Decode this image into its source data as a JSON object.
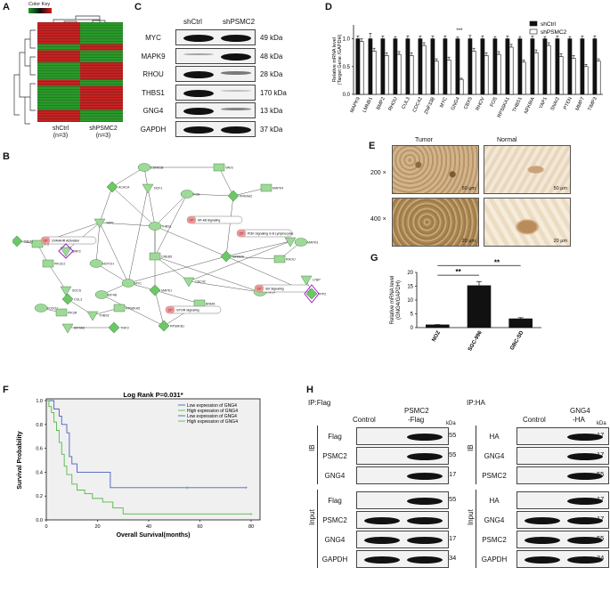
{
  "panels": {
    "A": "A",
    "B": "B",
    "C": "C",
    "D": "D",
    "E": "E",
    "F": "F",
    "G": "G",
    "H": "H"
  },
  "panelA": {
    "color_key": "Color Key",
    "groups": [
      "shCtrl\n(n=3)",
      "shPSMC2\n(n=3)"
    ],
    "group1": "shCtrl",
    "group1_n": "(n=3)",
    "group2": "shPSMC2",
    "group2_n": "(n=3)"
  },
  "panelB": {
    "nodes": [
      "CSNK1B",
      "VAV3",
      "ACACA",
      "NCF1",
      "FOS",
      "MAPK4",
      "PRKAA2",
      "YAP1",
      "THBS1",
      "CREB5",
      "NFKBIA",
      "CDC42",
      "MYC",
      "RHOU",
      "MAPK1",
      "SMAD",
      "EIF4B",
      "PIK3C2",
      "RPS6KB1",
      "SOCS",
      "FOXO1",
      "IRS",
      "CUL3",
      "THBS2",
      "GNG4",
      "PIK3R",
      "PPP2",
      "BMP2",
      "NOTCH",
      "RPS6KA5",
      "TNFO",
      "EIF4A3",
      "MAPK3",
      "BNMA",
      "TMEM",
      "LTBP"
    ],
    "pathways": [
      "UVA/AHR Activation",
      "NF-kB Signaling",
      "PI3K Signaling in B Lymphocytes",
      "Sirt Signaling",
      "mTOR Signaling"
    ],
    "pathway_tag": "CP"
  },
  "panelC": {
    "headers": [
      "shCtrl",
      "shPSMC2"
    ],
    "rows": [
      {
        "name": "MYC",
        "kda": "49 kDa",
        "ctrl": 1.0,
        "sh": 1.0
      },
      {
        "name": "MAPK9",
        "kda": "48 kDa",
        "ctrl": 0.25,
        "sh": 1.0
      },
      {
        "name": "RHOU",
        "kda": "28 kDa",
        "ctrl": 1.0,
        "sh": 0.45
      },
      {
        "name": "THBS1",
        "kda": "170 kDa",
        "ctrl": 1.0,
        "sh": 0.1
      },
      {
        "name": "GNG4",
        "kda": "13 kDa",
        "ctrl": 1.0,
        "sh": 0.4
      },
      {
        "name": "GAPDH",
        "kda": "37 kDa",
        "ctrl": 1.0,
        "sh": 1.0
      }
    ]
  },
  "panelE": {
    "col1": "Tumor",
    "col2": "Normal",
    "row1": "200 ×",
    "row2": "400 ×",
    "scale1": "50 μm",
    "scale2": "50 μm",
    "scale3": "20 μm",
    "scale4": "20 μm"
  },
  "panelH": {
    "left_title": "IP:Flag",
    "left_cols": [
      "Control",
      "PSMC2\n-Flag"
    ],
    "left_col1": "Control",
    "left_col2a": "PSMC2",
    "left_col2b": "-Flag",
    "ib": "IB",
    "input": "Input",
    "kda": "kDa",
    "left_ib_rows": [
      {
        "name": "Flag",
        "kda": "55"
      },
      {
        "name": "PSMC2",
        "kda": "55"
      },
      {
        "name": "GNG4",
        "kda": "17"
      }
    ],
    "left_in_rows": [
      {
        "name": "Flag",
        "kda": "55"
      },
      {
        "name": "PSMC2",
        "kda": ""
      },
      {
        "name": "GNG4",
        "kda": "17"
      },
      {
        "name": "GAPDH",
        "kda": "34"
      }
    ],
    "right_title": "IP:HA",
    "right_col1": "Control",
    "right_col2a": "GNG4",
    "right_col2b": "-HA",
    "right_ib_rows": [
      {
        "name": "HA",
        "kda": "17"
      },
      {
        "name": "GNG4",
        "kda": "17"
      },
      {
        "name": "PSMC2",
        "kda": "55"
      }
    ],
    "right_in_rows": [
      {
        "name": "HA",
        "kda": "17"
      },
      {
        "name": "GNG4",
        "kda": "17"
      },
      {
        "name": "PSMC2",
        "kda": "55"
      },
      {
        "name": "GAPDH",
        "kda": "34"
      }
    ]
  },
  "chart_data": [
    {
      "id": "D",
      "type": "bar",
      "categories": [
        "MAPK9",
        "LMNB1",
        "BMP2",
        "RHOU",
        "CUL3",
        "CDC42",
        "ZNF33B",
        "MYC",
        "GNG4",
        "CBX5",
        "RHOV",
        "FOS",
        "RPS6KA1",
        "THBS1",
        "NFKBIA",
        "YAP1",
        "SNAI2",
        "PTEN",
        "MMP7",
        "TIMP3"
      ],
      "series": [
        {
          "name": "shCtrl",
          "values": [
            1.0,
            1.0,
            1.0,
            1.0,
            1.0,
            1.0,
            1.0,
            1.0,
            1.0,
            1.0,
            1.0,
            1.0,
            1.0,
            1.0,
            1.0,
            1.0,
            1.0,
            1.0,
            1.0,
            1.0
          ],
          "errors": [
            0.05,
            0.1,
            0.05,
            0.04,
            0.05,
            0.05,
            0.05,
            0.05,
            0.03,
            0.06,
            0.05,
            0.04,
            0.05,
            0.04,
            0.05,
            0.04,
            0.05,
            0.04,
            0.05,
            0.05
          ]
        },
        {
          "name": "shPSMC2",
          "values": [
            0.95,
            0.78,
            0.7,
            0.72,
            0.7,
            0.88,
            0.6,
            0.62,
            0.27,
            0.78,
            0.7,
            0.72,
            0.85,
            0.58,
            0.75,
            0.88,
            0.68,
            0.65,
            0.5,
            0.6
          ],
          "errors": [
            0.05,
            0.05,
            0.05,
            0.05,
            0.05,
            0.05,
            0.04,
            0.05,
            0.02,
            0.05,
            0.05,
            0.05,
            0.05,
            0.04,
            0.05,
            0.05,
            0.05,
            0.05,
            0.04,
            0.04
          ]
        }
      ],
      "ylabel": "Relative mRNA level\n(Target Gene /GAPDH)",
      "ylabel1": "Relative mRNA level",
      "ylabel2": "(Target Gene /GAPDH)",
      "ylim": [
        0,
        1.25
      ],
      "yticks": [
        "0.0",
        "0.5",
        "1.0"
      ],
      "significance": {
        "category": "GNG4",
        "text": "***"
      },
      "legend": "top-right"
    },
    {
      "id": "G",
      "type": "bar",
      "categories": [
        "NOZ",
        "SGC-996",
        "GBC-SD"
      ],
      "values": [
        1.0,
        15.2,
        3.2
      ],
      "errors": [
        0.1,
        1.5,
        0.4
      ],
      "ylabel": "Relative mRNA level\n(GNG4/GAPDH)",
      "ylabel1": "Relative mRNA level",
      "ylabel2": "(GNG4/GAPDH)",
      "ylim": [
        0,
        20
      ],
      "yticks": [
        "0",
        "5",
        "10",
        "15",
        "20"
      ],
      "significance": [
        "**",
        "**"
      ]
    },
    {
      "id": "F",
      "type": "line",
      "title": "Log Rank P=0.031*",
      "xlabel": "Overall Survival(months)",
      "ylabel": "Survival Probability",
      "xlim": [
        0,
        80
      ],
      "ylim": [
        0,
        1.0
      ],
      "xticks": [
        "0",
        "20",
        "40",
        "60",
        "80"
      ],
      "yticks": [
        "0.0",
        "0.2",
        "0.4",
        "0.6",
        "0.8",
        "1.0"
      ],
      "legend": [
        "Low expression of GNG4",
        "High expression of GNG4",
        "Low expression of GNG4",
        "High expression of GNG4"
      ],
      "series": [
        {
          "name": "Low expression of GNG4",
          "color": "#4a5fc1",
          "x": [
            0,
            3,
            5,
            6,
            8,
            9,
            10,
            12,
            25,
            78
          ],
          "y": [
            1.0,
            0.93,
            0.87,
            0.8,
            0.73,
            0.53,
            0.47,
            0.4,
            0.27,
            0.27
          ]
        },
        {
          "name": "High expression of GNG4",
          "color": "#55b84a",
          "x": [
            0,
            1,
            2,
            3,
            4,
            5,
            6,
            7,
            8,
            10,
            12,
            15,
            18,
            22,
            26,
            30,
            80
          ],
          "y": [
            1.0,
            0.95,
            0.9,
            0.82,
            0.75,
            0.65,
            0.55,
            0.45,
            0.38,
            0.3,
            0.25,
            0.22,
            0.18,
            0.15,
            0.1,
            0.05,
            0.05
          ]
        }
      ]
    }
  ]
}
